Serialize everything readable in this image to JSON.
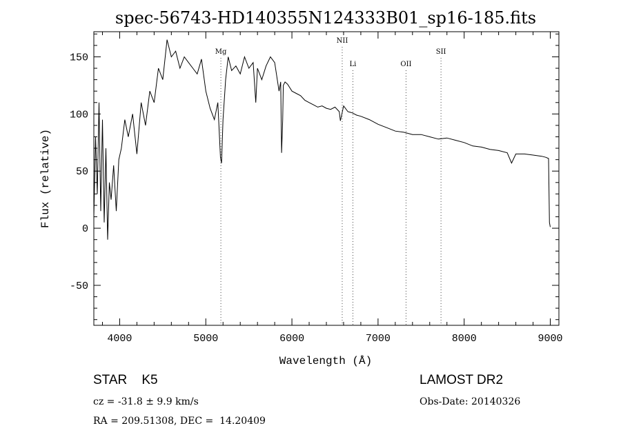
{
  "chart_data": {
    "type": "line",
    "title": "spec-56743-HD140355N124333B01_sp16-185.fits",
    "xlabel": "Wavelength (Å)",
    "ylabel": "Flux (relative)",
    "xlim": [
      3700,
      9100
    ],
    "ylim": [
      -85,
      172
    ],
    "x_ticks": [
      4000,
      5000,
      6000,
      7000,
      8000,
      9000
    ],
    "y_ticks": [
      -50,
      0,
      50,
      100,
      150
    ],
    "grid": false,
    "series": [
      {
        "x": [
          3700,
          3720,
          3740,
          3760,
          3780,
          3800,
          3820,
          3840,
          3860,
          3880,
          3900,
          3930,
          3960,
          3990,
          4020,
          4060,
          4100,
          4150,
          4200,
          4250,
          4300,
          4350,
          4400,
          4450,
          4500,
          4550,
          4600,
          4650,
          4700,
          4750,
          4800,
          4850,
          4900,
          4950,
          5000,
          5050,
          5100,
          5140,
          5170,
          5183,
          5200,
          5230,
          5260,
          5300,
          5350,
          5400,
          5450,
          5500,
          5550,
          5580,
          5600,
          5650,
          5700,
          5750,
          5800,
          5850,
          5870,
          5880,
          5893,
          5900,
          5920,
          5950,
          6000,
          6050,
          6100,
          6150,
          6200,
          6250,
          6300,
          6350,
          6400,
          6450,
          6500,
          6550,
          6563,
          6600,
          6650,
          6700,
          6750,
          6800,
          6900,
          7000,
          7100,
          7200,
          7300,
          7400,
          7500,
          7600,
          7700,
          7800,
          7900,
          8000,
          8100,
          8200,
          8300,
          8400,
          8500,
          8550,
          8600,
          8700,
          8800,
          8900,
          8950,
          8980,
          8990,
          9000
        ],
        "y": [
          10,
          80,
          30,
          110,
          15,
          95,
          5,
          70,
          -10,
          40,
          25,
          55,
          15,
          60,
          70,
          95,
          80,
          100,
          65,
          110,
          90,
          120,
          110,
          140,
          130,
          165,
          150,
          155,
          140,
          150,
          145,
          140,
          135,
          148,
          120,
          105,
          95,
          110,
          62,
          57,
          95,
          130,
          150,
          138,
          142,
          135,
          150,
          140,
          145,
          110,
          140,
          130,
          142,
          150,
          145,
          120,
          128,
          66,
          95,
          125,
          128,
          126,
          120,
          118,
          116,
          112,
          110,
          108,
          106,
          107,
          105,
          104,
          106,
          102,
          94,
          107,
          102,
          101,
          99,
          98,
          95,
          91,
          88,
          85,
          84,
          82,
          82,
          80,
          78,
          79,
          77,
          75,
          72,
          71,
          69,
          68,
          66,
          57,
          65,
          65,
          64,
          63,
          62,
          61,
          5,
          1
        ]
      }
    ],
    "line_markers": [
      {
        "name": "Mg",
        "x": 5175
      },
      {
        "name": "NII",
        "x": 6584
      },
      {
        "name": "Li",
        "x": 6708
      },
      {
        "name": "OII",
        "x": 7325
      },
      {
        "name": "SII",
        "x": 7731
      }
    ],
    "annotations": {
      "left_line1": "STAR    K5",
      "left_line2": "cz = -31.8 ± 9.9 km/s",
      "left_line3": "RA = 209.51308, DEC =  14.20409",
      "right_line1": "LAMOST DR2",
      "right_line2": "Obs-Date: 20140326"
    }
  }
}
